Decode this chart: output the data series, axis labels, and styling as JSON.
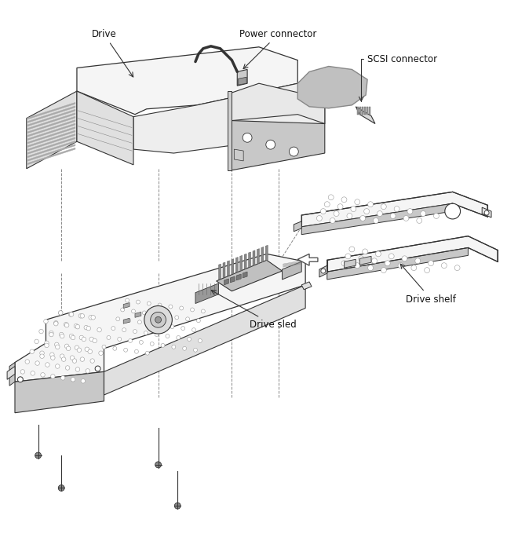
{
  "background_color": "#ffffff",
  "fig_width": 6.46,
  "fig_height": 7.03,
  "dpi": 100,
  "labels": {
    "drive": "Drive",
    "power_connector": "Power connector",
    "scsi_connector": "SCSI connector",
    "drive_sled": "Drive sled",
    "drive_shelf": "Drive shelf"
  },
  "ec": "#333333",
  "lc": "#555555",
  "fc_light": "#f5f5f5",
  "fc_mid": "#e0e0e0",
  "fc_dark": "#c8c8c8",
  "fc_darker": "#b0b0b0",
  "fc_scsi": "#b8b8b8",
  "hatch_color": "#999999",
  "dot_color": "#aaaaaa",
  "text_color": "#111111",
  "arrow_color": "#333333",
  "dashed_color": "#888888",
  "fontsize": 8.5,
  "lw_main": 0.8,
  "lw_thin": 0.5,
  "lw_thick": 1.0
}
